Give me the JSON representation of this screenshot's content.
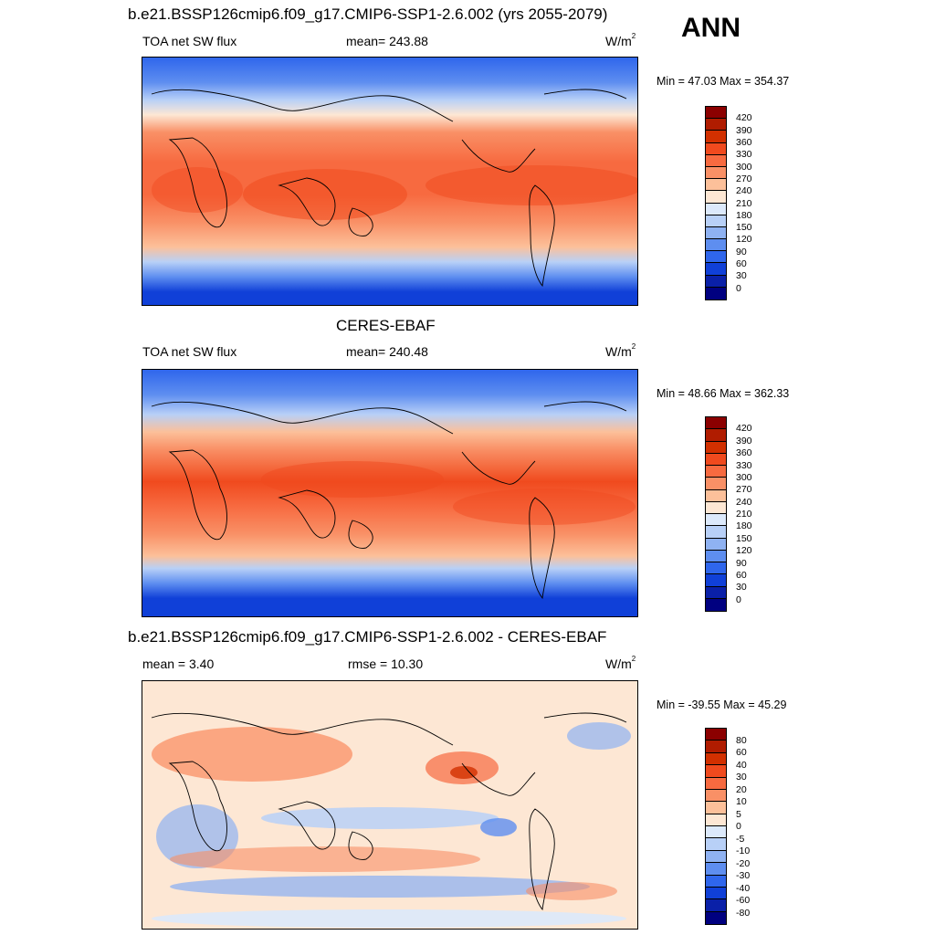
{
  "season": "ANN",
  "panels": [
    {
      "title": "b.e21.BSSP126cmip6.f09_g17.CMIP6-SSP1-2.6.002 (yrs 2055-2079)",
      "left_label": "TOA net SW flux",
      "center_label": "mean= 243.88",
      "unit_base": "W/m",
      "unit_exp": "2",
      "minmax": "Min =  47.03 Max = 354.37",
      "colorbar_labels": [
        "420",
        "390",
        "360",
        "330",
        "300",
        "270",
        "240",
        "210",
        "180",
        "150",
        "120",
        "90",
        "60",
        "30",
        "0"
      ],
      "colorbar_colors": [
        "#8b0000",
        "#b01c00",
        "#d23000",
        "#f04a1e",
        "#f76a40",
        "#f99066",
        "#fcc09a",
        "#fde7d4",
        "#dce9fb",
        "#b8d0f7",
        "#8fb2f2",
        "#5e8ef0",
        "#2f66ec",
        "#1040d8",
        "#0a20a8",
        "#000080"
      ]
    },
    {
      "title": "CERES-EBAF",
      "left_label": "TOA net SW flux",
      "center_label": "mean= 240.48",
      "unit_base": "W/m",
      "unit_exp": "2",
      "minmax": "Min =  48.66 Max = 362.33",
      "colorbar_labels": [
        "420",
        "390",
        "360",
        "330",
        "300",
        "270",
        "240",
        "210",
        "180",
        "150",
        "120",
        "90",
        "60",
        "30",
        "0"
      ],
      "colorbar_colors": [
        "#8b0000",
        "#b01c00",
        "#d23000",
        "#f04a1e",
        "#f76a40",
        "#f99066",
        "#fcc09a",
        "#fde7d4",
        "#dce9fb",
        "#b8d0f7",
        "#8fb2f2",
        "#5e8ef0",
        "#2f66ec",
        "#1040d8",
        "#0a20a8",
        "#000080"
      ]
    },
    {
      "title": "b.e21.BSSP126cmip6.f09_g17.CMIP6-SSP1-2.6.002 - CERES-EBAF",
      "left_label": "mean =   3.40",
      "center_label": "rmse =  10.30",
      "unit_base": "W/m",
      "unit_exp": "2",
      "minmax": "Min = -39.55 Max =  45.29",
      "colorbar_labels": [
        "80",
        "60",
        "40",
        "30",
        "20",
        "10",
        "5",
        "0",
        "-5",
        "-10",
        "-20",
        "-30",
        "-40",
        "-60",
        "-80"
      ],
      "colorbar_colors": [
        "#8b0000",
        "#b01c00",
        "#d23000",
        "#f04a1e",
        "#f76a40",
        "#f99066",
        "#fcc09a",
        "#fde7d4",
        "#dce9fb",
        "#b8d0f7",
        "#8fb2f2",
        "#5e8ef0",
        "#2f66ec",
        "#1040d8",
        "#0a20a8",
        "#000080"
      ]
    }
  ]
}
